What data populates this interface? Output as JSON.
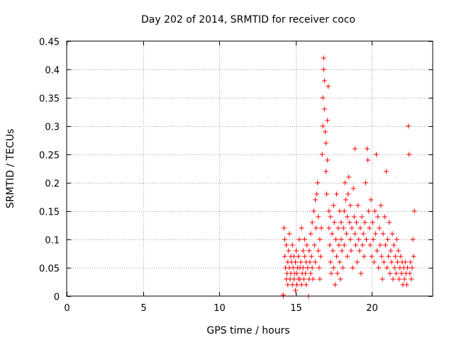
{
  "chart_data": {
    "type": "scatter",
    "title": "Day 202 of 2014, SRMTID for receiver coco",
    "xlabel": "GPS time / hours",
    "ylabel": "SRMTID / TECUs",
    "xlim": [
      0,
      24
    ],
    "ylim": [
      0,
      0.45
    ],
    "xticks": [
      0,
      5,
      10,
      15,
      20
    ],
    "xtick_labels": [
      "0",
      "5",
      "10",
      "15",
      "20"
    ],
    "yticks": [
      0,
      0.05,
      0.1,
      0.15,
      0.2,
      0.25,
      0.3,
      0.35,
      0.4,
      0.45
    ],
    "ytick_labels": [
      "0",
      "0.05",
      "0.1",
      "0.15",
      "0.2",
      "0.25",
      "0.3",
      "0.35",
      "0.4",
      "0.45"
    ],
    "grid": true,
    "marker": "+",
    "color": "#ff0000",
    "series": [
      {
        "name": "SRMTID",
        "points": [
          [
            14.2,
            0.002
          ],
          [
            14.2,
            0.0
          ],
          [
            14.25,
            0.12
          ],
          [
            14.3,
            0.1
          ],
          [
            14.3,
            0.07
          ],
          [
            14.35,
            0.05
          ],
          [
            14.4,
            0.03
          ],
          [
            14.4,
            0.09
          ],
          [
            14.45,
            0.04
          ],
          [
            14.5,
            0.02
          ],
          [
            14.5,
            0.06
          ],
          [
            14.55,
            0.08
          ],
          [
            14.6,
            0.05
          ],
          [
            14.6,
            0.11
          ],
          [
            14.65,
            0.03
          ],
          [
            14.7,
            0.07
          ],
          [
            14.7,
            0.04
          ],
          [
            14.75,
            0.06
          ],
          [
            14.8,
            0.02
          ],
          [
            14.8,
            0.09
          ],
          [
            14.85,
            0.05
          ],
          [
            14.9,
            0.03
          ],
          [
            14.9,
            0.07
          ],
          [
            14.95,
            0.04
          ],
          [
            15.0,
            0.01
          ],
          [
            15.0,
            0.06
          ],
          [
            15.05,
            0.08
          ],
          [
            15.1,
            0.04
          ],
          [
            15.1,
            0.02
          ],
          [
            15.15,
            0.05
          ],
          [
            15.2,
            0.03
          ],
          [
            15.2,
            0.07
          ],
          [
            15.25,
            0.1
          ],
          [
            15.3,
            0.05
          ],
          [
            15.3,
            0.03
          ],
          [
            15.35,
            0.06
          ],
          [
            15.4,
            0.02
          ],
          [
            15.4,
            0.12
          ],
          [
            15.45,
            0.04
          ],
          [
            15.5,
            0.08
          ],
          [
            15.5,
            0.05
          ],
          [
            15.55,
            0.03
          ],
          [
            15.6,
            0.07
          ],
          [
            15.6,
            0.1
          ],
          [
            15.65,
            0.04
          ],
          [
            15.7,
            0.02
          ],
          [
            15.7,
            0.06
          ],
          [
            15.75,
            0.09
          ],
          [
            15.8,
            0.05
          ],
          [
            15.85,
            0.0
          ],
          [
            15.9,
            0.03
          ],
          [
            15.9,
            0.08
          ],
          [
            15.95,
            0.06
          ],
          [
            16.0,
            0.04
          ],
          [
            16.0,
            0.11
          ],
          [
            16.05,
            0.07
          ],
          [
            16.1,
            0.13
          ],
          [
            16.1,
            0.05
          ],
          [
            16.15,
            0.03
          ],
          [
            16.2,
            0.15
          ],
          [
            16.25,
            0.09
          ],
          [
            16.3,
            0.06
          ],
          [
            16.3,
            0.17
          ],
          [
            16.35,
            0.12
          ],
          [
            16.4,
            0.18
          ],
          [
            16.45,
            0.2
          ],
          [
            16.5,
            0.08
          ],
          [
            16.5,
            0.14
          ],
          [
            16.55,
            0.05
          ],
          [
            16.6,
            0.1
          ],
          [
            16.6,
            0.03
          ],
          [
            16.65,
            0.07
          ],
          [
            16.7,
            0.12
          ],
          [
            16.75,
            0.25
          ],
          [
            16.8,
            0.3
          ],
          [
            16.8,
            0.35
          ],
          [
            16.85,
            0.42
          ],
          [
            16.85,
            0.4
          ],
          [
            16.9,
            0.38
          ],
          [
            16.9,
            0.33
          ],
          [
            16.95,
            0.29
          ],
          [
            17.0,
            0.27
          ],
          [
            17.0,
            0.22
          ],
          [
            17.05,
            0.18
          ],
          [
            17.1,
            0.31
          ],
          [
            17.1,
            0.24
          ],
          [
            17.15,
            0.37
          ],
          [
            17.2,
            0.15
          ],
          [
            17.2,
            0.12
          ],
          [
            17.25,
            0.09
          ],
          [
            17.3,
            0.06
          ],
          [
            17.3,
            0.14
          ],
          [
            17.35,
            0.04
          ],
          [
            17.4,
            0.11
          ],
          [
            17.45,
            0.08
          ],
          [
            17.5,
            0.16
          ],
          [
            17.5,
            0.05
          ],
          [
            17.55,
            0.13
          ],
          [
            17.6,
            0.02
          ],
          [
            17.65,
            0.1
          ],
          [
            17.7,
            0.07
          ],
          [
            17.7,
            0.18
          ],
          [
            17.75,
            0.04
          ],
          [
            17.8,
            0.12
          ],
          [
            17.85,
            0.09
          ],
          [
            17.9,
            0.15
          ],
          [
            17.9,
            0.06
          ],
          [
            17.95,
            0.03
          ],
          [
            18.0,
            0.1
          ],
          [
            18.0,
            0.13
          ],
          [
            18.05,
            0.08
          ],
          [
            18.1,
            0.05
          ],
          [
            18.15,
            0.12
          ],
          [
            18.2,
            0.15
          ],
          [
            18.2,
            0.09
          ],
          [
            18.25,
            0.2
          ],
          [
            18.3,
            0.17
          ],
          [
            18.35,
            0.11
          ],
          [
            18.4,
            0.14
          ],
          [
            18.4,
            0.07
          ],
          [
            18.45,
            0.18
          ],
          [
            18.5,
            0.21
          ],
          [
            18.55,
            0.13
          ],
          [
            18.6,
            0.1
          ],
          [
            18.6,
            0.16
          ],
          [
            18.65,
            0.08
          ],
          [
            18.7,
            0.12
          ],
          [
            18.75,
            0.05
          ],
          [
            18.8,
            0.19
          ],
          [
            18.85,
            0.14
          ],
          [
            18.9,
            0.26
          ],
          [
            18.9,
            0.11
          ],
          [
            18.95,
            0.09
          ],
          [
            19.0,
            0.13
          ],
          [
            19.05,
            0.06
          ],
          [
            19.1,
            0.16
          ],
          [
            19.15,
            0.1
          ],
          [
            19.2,
            0.08
          ],
          [
            19.25,
            0.12
          ],
          [
            19.3,
            0.04
          ],
          [
            19.35,
            0.14
          ],
          [
            19.4,
            0.09
          ],
          [
            19.45,
            0.11
          ],
          [
            19.5,
            0.07
          ],
          [
            19.55,
            0.13
          ],
          [
            19.6,
            0.2
          ],
          [
            19.65,
            0.1
          ],
          [
            19.7,
            0.26
          ],
          [
            19.75,
            0.24
          ],
          [
            19.8,
            0.15
          ],
          [
            19.85,
            0.12
          ],
          [
            19.9,
            0.09
          ],
          [
            19.95,
            0.17
          ],
          [
            20.0,
            0.07
          ],
          [
            20.05,
            0.13
          ],
          [
            20.1,
            0.1
          ],
          [
            20.15,
            0.06
          ],
          [
            20.2,
            0.15
          ],
          [
            20.25,
            0.11
          ],
          [
            20.3,
            0.25
          ],
          [
            20.35,
            0.08
          ],
          [
            20.4,
            0.14
          ],
          [
            20.45,
            0.05
          ],
          [
            20.5,
            0.12
          ],
          [
            20.55,
            0.09
          ],
          [
            20.6,
            0.16
          ],
          [
            20.65,
            0.07
          ],
          [
            20.7,
            0.03
          ],
          [
            20.75,
            0.11
          ],
          [
            20.8,
            0.06
          ],
          [
            20.85,
            0.14
          ],
          [
            20.9,
            0.09
          ],
          [
            20.95,
            0.22
          ],
          [
            21.0,
            0.05
          ],
          [
            21.05,
            0.1
          ],
          [
            21.1,
            0.07
          ],
          [
            21.15,
            0.13
          ],
          [
            21.2,
            0.04
          ],
          [
            21.25,
            0.08
          ],
          [
            21.3,
            0.06
          ],
          [
            21.35,
            0.11
          ],
          [
            21.4,
            0.03
          ],
          [
            21.45,
            0.09
          ],
          [
            21.5,
            0.05
          ],
          [
            21.55,
            0.07
          ],
          [
            21.6,
            0.04
          ],
          [
            21.65,
            0.1
          ],
          [
            21.7,
            0.06
          ],
          [
            21.75,
            0.08
          ],
          [
            21.8,
            0.03
          ],
          [
            21.85,
            0.05
          ],
          [
            21.9,
            0.07
          ],
          [
            21.95,
            0.04
          ],
          [
            22.0,
            0.06
          ],
          [
            22.05,
            0.02
          ],
          [
            22.1,
            0.05
          ],
          [
            22.15,
            0.03
          ],
          [
            22.2,
            0.06
          ],
          [
            22.25,
            0.04
          ],
          [
            22.3,
            0.02
          ],
          [
            22.35,
            0.05
          ],
          [
            22.4,
            0.3
          ],
          [
            22.45,
            0.25
          ],
          [
            22.5,
            0.04
          ],
          [
            22.55,
            0.06
          ],
          [
            22.6,
            0.03
          ],
          [
            22.65,
            0.05
          ],
          [
            22.7,
            0.1
          ],
          [
            22.75,
            0.07
          ],
          [
            22.8,
            0.15
          ]
        ]
      }
    ]
  }
}
